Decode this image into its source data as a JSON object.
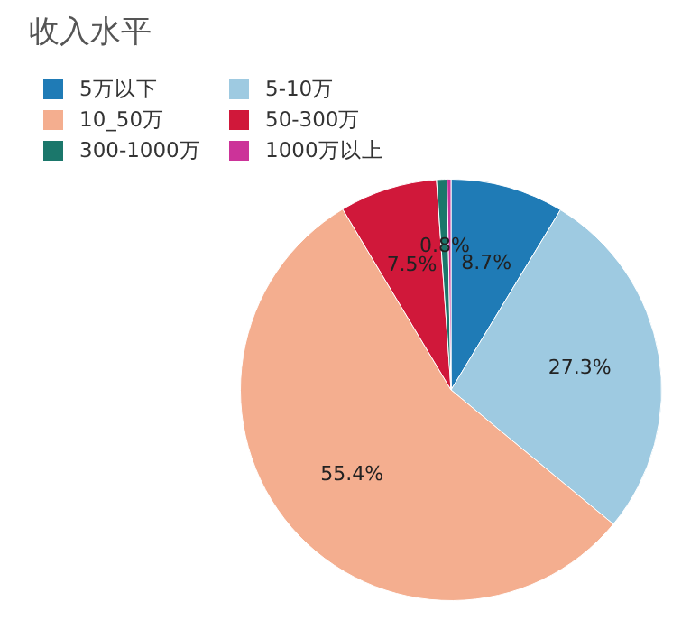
{
  "chart_data": {
    "type": "pie",
    "title": "收入水平",
    "categories": [
      "5万以下",
      "5-10万",
      "10_50万",
      "50-300万",
      "300-1000万",
      "1000万以上"
    ],
    "values": [
      8.7,
      27.3,
      55.4,
      7.5,
      0.8,
      0.3
    ],
    "colors": [
      "#1f7bb6",
      "#9ecae1",
      "#f4ae8f",
      "#d0183a",
      "#1b776b",
      "#cc3399"
    ],
    "value_labels": [
      "8.7%",
      "27.3%",
      "55.4%",
      "7.5%",
      "0.8%",
      null
    ],
    "legend": "top left"
  }
}
